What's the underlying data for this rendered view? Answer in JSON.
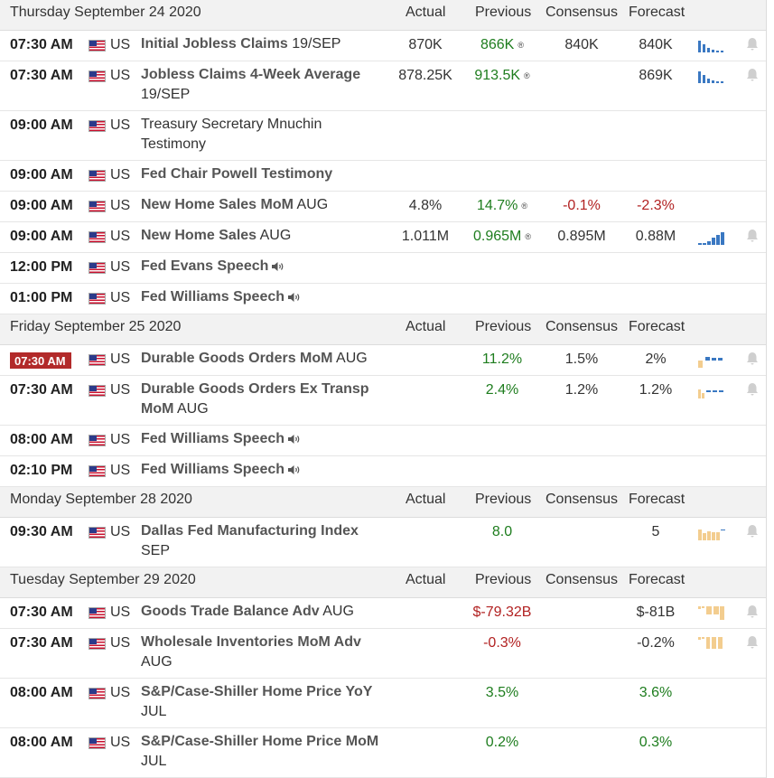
{
  "colors": {
    "positive": "#1e7d1e",
    "negative": "#b22222",
    "chart_blue": "#3a78c2",
    "chart_tan": "#f3cd8f",
    "time_highlight": "#b22a2a"
  },
  "icons": {
    "flag": "us-flag-icon",
    "speech": "speaker-icon",
    "alert": "bell-icon",
    "history": "mini-bar-chart-icon",
    "revised": "revised-marker-icon"
  },
  "days": [
    {
      "date": "Thursday September 24 2020",
      "headers": {
        "actual": "Actual",
        "previous": "Previous",
        "consensus": "Consensus",
        "forecast": "Forecast"
      },
      "events": [
        {
          "time": "07:30 AM",
          "country": "US",
          "name": "Initial Jobless Claims",
          "suffix": "19/SEP",
          "actual": "870K",
          "previous": "866K",
          "previous_class": "pos",
          "previous_revised": "®",
          "consensus": "840K",
          "forecast": "840K",
          "forecast_class": "",
          "chart": "blue-down",
          "bell": true,
          "lines": 1
        },
        {
          "time": "07:30 AM",
          "country": "US",
          "name": "Jobless Claims 4-Week Average",
          "suffix": "19/SEP",
          "actual": "878.25K",
          "previous": "913.5K",
          "previous_class": "pos",
          "previous_revised": "®",
          "consensus": "",
          "forecast": "869K",
          "forecast_class": "",
          "chart": "blue-down",
          "bell": true,
          "lines": 2
        },
        {
          "time": "09:00 AM",
          "country": "US",
          "name": "",
          "suffix": "Treasury Secretary Mnuchin Testimony",
          "actual": "",
          "previous": "",
          "previous_class": "",
          "previous_revised": "",
          "consensus": "",
          "forecast": "",
          "forecast_class": "",
          "chart": "none",
          "bell": false,
          "lines": 2
        },
        {
          "time": "09:00 AM",
          "country": "US",
          "name": "Fed Chair Powell Testimony",
          "suffix": "",
          "actual": "",
          "previous": "",
          "previous_class": "",
          "previous_revised": "",
          "consensus": "",
          "forecast": "",
          "forecast_class": "",
          "chart": "none",
          "bell": false,
          "lines": 1
        },
        {
          "time": "09:00 AM",
          "country": "US",
          "name": "New Home Sales MoM",
          "suffix": "AUG",
          "actual": "4.8%",
          "previous": "14.7%",
          "previous_class": "pos",
          "previous_revised": "®",
          "consensus": "-0.1%",
          "consensus_class": "neg",
          "forecast": "-2.3%",
          "forecast_class": "neg",
          "chart": "none",
          "bell": false,
          "lines": 1
        },
        {
          "time": "09:00 AM",
          "country": "US",
          "name": "New Home Sales",
          "suffix": "AUG",
          "actual": "1.011M",
          "previous": "0.965M",
          "previous_class": "pos",
          "previous_revised": "®",
          "consensus": "0.895M",
          "forecast": "0.88M",
          "forecast_class": "",
          "chart": "blue-up",
          "bell": true,
          "lines": 1
        },
        {
          "time": "12:00 PM",
          "country": "US",
          "name": "Fed Evans Speech",
          "suffix": "",
          "speech": true,
          "actual": "",
          "previous": "",
          "previous_class": "",
          "previous_revised": "",
          "consensus": "",
          "forecast": "",
          "forecast_class": "",
          "chart": "none",
          "bell": false,
          "lines": 1
        },
        {
          "time": "01:00 PM",
          "country": "US",
          "name": "Fed Williams Speech",
          "suffix": "",
          "speech": true,
          "actual": "",
          "previous": "",
          "previous_class": "",
          "previous_revised": "",
          "consensus": "",
          "forecast": "",
          "forecast_class": "",
          "chart": "none",
          "bell": false,
          "lines": 1
        }
      ]
    },
    {
      "date": "Friday September 25 2020",
      "headers": {
        "actual": "Actual",
        "previous": "Previous",
        "consensus": "Consensus",
        "forecast": "Forecast"
      },
      "events": [
        {
          "time": "07:30 AM",
          "highlight": true,
          "country": "US",
          "name": "Durable Goods Orders MoM",
          "suffix": "AUG",
          "actual": "",
          "previous": "11.2%",
          "previous_class": "pos",
          "previous_revised": "",
          "consensus": "1.5%",
          "forecast": "2%",
          "forecast_class": "",
          "chart": "tan-blue-high",
          "bell": true,
          "lines": 1
        },
        {
          "time": "07:30 AM",
          "country": "US",
          "name": "Durable Goods Orders Ex Transp MoM",
          "suffix": "AUG",
          "actual": "",
          "previous": "2.4%",
          "previous_class": "pos",
          "previous_revised": "",
          "consensus": "1.2%",
          "forecast": "1.2%",
          "forecast_class": "",
          "chart": "tan-blue-mid",
          "bell": true,
          "lines": 2
        },
        {
          "time": "08:00 AM",
          "country": "US",
          "name": "Fed Williams Speech",
          "suffix": "",
          "speech": true,
          "actual": "",
          "previous": "",
          "previous_class": "",
          "previous_revised": "",
          "consensus": "",
          "forecast": "",
          "forecast_class": "",
          "chart": "none",
          "bell": false,
          "lines": 1
        },
        {
          "time": "02:10 PM",
          "country": "US",
          "name": "Fed Williams Speech",
          "suffix": "",
          "speech": true,
          "actual": "",
          "previous": "",
          "previous_class": "",
          "previous_revised": "",
          "consensus": "",
          "forecast": "",
          "forecast_class": "",
          "chart": "none",
          "bell": false,
          "lines": 1
        }
      ]
    },
    {
      "date": "Monday September 28 2020",
      "headers": {
        "actual": "Actual",
        "previous": "Previous",
        "consensus": "Consensus",
        "forecast": "Forecast"
      },
      "events": [
        {
          "time": "09:30 AM",
          "country": "US",
          "name": "Dallas Fed Manufacturing Index",
          "suffix": "SEP",
          "actual": "",
          "previous": "8.0",
          "previous_class": "pos",
          "previous_revised": "",
          "consensus": "",
          "forecast": "5",
          "forecast_class": "",
          "chart": "tan-flat",
          "bell": true,
          "lines": 2
        }
      ]
    },
    {
      "date": "Tuesday September 29 2020",
      "headers": {
        "actual": "Actual",
        "previous": "Previous",
        "consensus": "Consensus",
        "forecast": "Forecast"
      },
      "events": [
        {
          "time": "07:30 AM",
          "country": "US",
          "name": "Goods Trade Balance Adv",
          "suffix": "AUG",
          "actual": "",
          "previous": "$-79.32B",
          "previous_class": "neg",
          "previous_revised": "",
          "consensus": "",
          "forecast": "$-81B",
          "forecast_class": "",
          "chart": "tan-neg",
          "bell": true,
          "lines": 1
        },
        {
          "time": "07:30 AM",
          "country": "US",
          "name": "Wholesale Inventories MoM Adv",
          "suffix": "AUG",
          "actual": "",
          "previous": "-0.3%",
          "previous_class": "neg",
          "previous_revised": "",
          "consensus": "",
          "forecast": "-0.2%",
          "forecast_class": "",
          "chart": "tan-neg2",
          "bell": true,
          "lines": 2
        },
        {
          "time": "08:00 AM",
          "country": "US",
          "name": "S&P/Case-Shiller Home Price YoY",
          "suffix": "JUL",
          "actual": "",
          "previous": "3.5%",
          "previous_class": "pos",
          "previous_revised": "",
          "consensus": "",
          "forecast": "3.6%",
          "forecast_class": "pos",
          "chart": "none",
          "bell": false,
          "lines": 2
        },
        {
          "time": "08:00 AM",
          "country": "US",
          "name": "S&P/Case-Shiller Home Price MoM",
          "suffix": "JUL",
          "actual": "",
          "previous": "0.2%",
          "previous_class": "pos",
          "previous_revised": "",
          "consensus": "",
          "forecast": "0.3%",
          "forecast_class": "pos",
          "chart": "none",
          "bell": false,
          "lines": 2
        }
      ]
    }
  ]
}
